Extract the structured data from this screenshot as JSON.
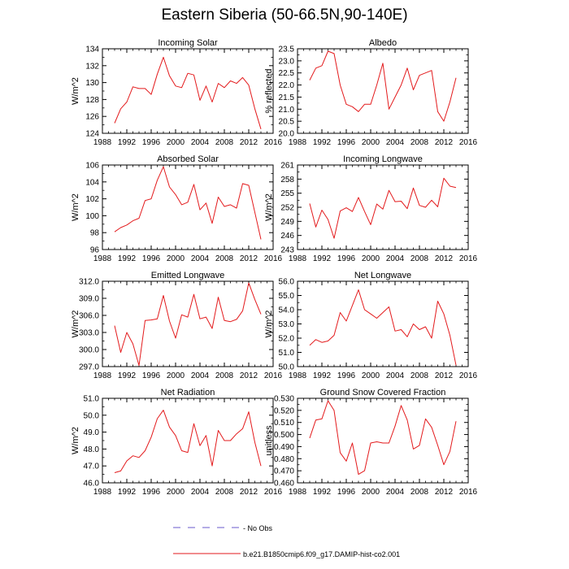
{
  "title": "Eastern Siberia (50-66.5N,90-140E)",
  "legend": {
    "entries": [
      {
        "label": "- No Obs",
        "color": "#6a5acd",
        "style": "dashed"
      },
      {
        "label": "b.e21.B1850cmip6.f09_g17.DAMIP-hist-co2.001",
        "color": "#e31a1c",
        "style": "solid"
      }
    ]
  },
  "chart_data": [
    {
      "type": "line",
      "title": "Incoming Solar",
      "ylabel": "W/m^2",
      "xlim": [
        1988,
        2016
      ],
      "ylim": [
        124,
        134
      ],
      "xticks": [
        "1988",
        "1992",
        "1996",
        "2000",
        "2004",
        "2008",
        "2012",
        "2016"
      ],
      "yticks": [
        "124",
        "126",
        "128",
        "130",
        "132",
        "134"
      ],
      "x": [
        1990,
        1991,
        1992,
        1993,
        1994,
        1995,
        1996,
        1997,
        1998,
        1999,
        2000,
        2001,
        2002,
        2003,
        2004,
        2005,
        2006,
        2007,
        2008,
        2009,
        2010,
        2011,
        2012,
        2013,
        2014
      ],
      "series": [
        {
          "values": [
            125.2,
            126.9,
            127.7,
            129.5,
            129.3,
            129.3,
            128.6,
            131.0,
            133.0,
            130.8,
            129.6,
            129.4,
            131.1,
            130.9,
            127.9,
            129.6,
            127.7,
            129.9,
            129.4,
            130.2,
            129.9,
            130.6,
            129.7,
            126.9,
            124.5
          ],
          "color": "#e31a1c"
        }
      ]
    },
    {
      "type": "line",
      "title": "Albedo",
      "ylabel": "% reflected",
      "xlim": [
        1988,
        2016
      ],
      "ylim": [
        20.0,
        23.5
      ],
      "xticks": [
        "1988",
        "1992",
        "1996",
        "2000",
        "2004",
        "2008",
        "2012",
        "2016"
      ],
      "yticks": [
        "20.0",
        "20.5",
        "21.0",
        "21.5",
        "22.0",
        "22.5",
        "23.0",
        "23.5"
      ],
      "x": [
        1990,
        1991,
        1992,
        1993,
        1994,
        1995,
        1996,
        1997,
        1998,
        1999,
        2000,
        2001,
        2002,
        2003,
        2004,
        2005,
        2006,
        2007,
        2008,
        2009,
        2010,
        2011,
        2012,
        2013,
        2014
      ],
      "series": [
        {
          "values": [
            22.2,
            22.7,
            22.8,
            23.4,
            23.3,
            22.0,
            21.2,
            21.1,
            20.9,
            21.2,
            21.2,
            22.0,
            22.9,
            21.0,
            21.5,
            22.0,
            22.7,
            21.8,
            22.4,
            22.5,
            22.6,
            20.9,
            20.5,
            21.3,
            22.3
          ],
          "color": "#e31a1c"
        }
      ]
    },
    {
      "type": "line",
      "title": "Absorbed Solar",
      "ylabel": "W/m^2",
      "xlim": [
        1988,
        2016
      ],
      "ylim": [
        96,
        106
      ],
      "xticks": [
        "1988",
        "1992",
        "1996",
        "2000",
        "2004",
        "2008",
        "2012",
        "2016"
      ],
      "yticks": [
        "96",
        "98",
        "100",
        "102",
        "104",
        "106"
      ],
      "x": [
        1990,
        1991,
        1992,
        1993,
        1994,
        1995,
        1996,
        1997,
        1998,
        1999,
        2000,
        2001,
        2002,
        2003,
        2004,
        2005,
        2006,
        2007,
        2008,
        2009,
        2010,
        2011,
        2012,
        2013,
        2014
      ],
      "series": [
        {
          "values": [
            98.1,
            98.6,
            98.9,
            99.4,
            99.7,
            101.8,
            102.0,
            104.2,
            105.8,
            103.4,
            102.5,
            101.3,
            101.6,
            103.7,
            100.7,
            101.5,
            99.1,
            102.2,
            101.1,
            101.3,
            100.9,
            103.8,
            103.6,
            100.4,
            97.2
          ],
          "color": "#e31a1c"
        }
      ]
    },
    {
      "type": "line",
      "title": "Incoming Longwave",
      "ylabel": "W/m^2",
      "xlim": [
        1988,
        2016
      ],
      "ylim": [
        243,
        261
      ],
      "xticks": [
        "1988",
        "1992",
        "1996",
        "2000",
        "2004",
        "2008",
        "2012",
        "2016"
      ],
      "yticks": [
        "243",
        "246",
        "249",
        "252",
        "255",
        "258",
        "261"
      ],
      "x": [
        1990,
        1991,
        1992,
        1993,
        1994,
        1995,
        1996,
        1997,
        1998,
        1999,
        2000,
        2001,
        2002,
        2003,
        2004,
        2005,
        2006,
        2007,
        2008,
        2009,
        2010,
        2011,
        2012,
        2013,
        2014
      ],
      "series": [
        {
          "values": [
            252.8,
            247.8,
            251.4,
            249.4,
            245.4,
            251.2,
            251.9,
            251.1,
            254.1,
            251.1,
            248.3,
            252.7,
            251.6,
            255.6,
            253.2,
            253.3,
            251.7,
            256.1,
            252.4,
            252.0,
            253.5,
            252.1,
            258.2,
            256.5,
            256.2
          ],
          "color": "#e31a1c"
        }
      ]
    },
    {
      "type": "line",
      "title": "Emitted Longwave",
      "ylabel": "W/m^2",
      "xlim": [
        1988,
        2016
      ],
      "ylim": [
        297.0,
        312.0
      ],
      "xticks": [
        "1988",
        "1992",
        "1996",
        "2000",
        "2004",
        "2008",
        "2012",
        "2016"
      ],
      "yticks": [
        "297.0",
        "300.0",
        "303.0",
        "306.0",
        "309.0",
        "312.0"
      ],
      "x": [
        1990,
        1991,
        1992,
        1993,
        1994,
        1995,
        1996,
        1997,
        1998,
        1999,
        2000,
        2001,
        2002,
        2003,
        2004,
        2005,
        2006,
        2007,
        2008,
        2009,
        2010,
        2011,
        2012,
        2013,
        2014
      ],
      "series": [
        {
          "values": [
            304.2,
            299.5,
            303.0,
            301.0,
            297.2,
            305.1,
            305.2,
            305.4,
            309.5,
            305.0,
            302.0,
            306.1,
            305.7,
            309.7,
            305.4,
            305.7,
            303.7,
            309.2,
            305.1,
            304.9,
            305.3,
            306.8,
            311.7,
            308.8,
            306.2
          ],
          "color": "#e31a1c"
        }
      ]
    },
    {
      "type": "line",
      "title": "Net Longwave",
      "ylabel": "W/m^2",
      "xlim": [
        1988,
        2016
      ],
      "ylim": [
        50.0,
        56.0
      ],
      "xticks": [
        "1988",
        "1992",
        "1996",
        "2000",
        "2004",
        "2008",
        "2012",
        "2016"
      ],
      "yticks": [
        "50.0",
        "51.0",
        "52.0",
        "53.0",
        "54.0",
        "55.0",
        "56.0"
      ],
      "x": [
        1990,
        1991,
        1992,
        1993,
        1994,
        1995,
        1996,
        1997,
        1998,
        1999,
        2000,
        2001,
        2002,
        2003,
        2004,
        2005,
        2006,
        2007,
        2008,
        2009,
        2010,
        2011,
        2012,
        2013,
        2014
      ],
      "series": [
        {
          "values": [
            51.5,
            51.9,
            51.7,
            51.8,
            52.2,
            53.8,
            53.2,
            54.3,
            55.4,
            54.0,
            53.7,
            53.4,
            53.8,
            54.2,
            52.5,
            52.6,
            52.1,
            53.0,
            52.6,
            52.8,
            52.0,
            54.6,
            53.7,
            52.2,
            50.1
          ],
          "color": "#e31a1c"
        }
      ]
    },
    {
      "type": "line",
      "title": "Net Radiation",
      "ylabel": "W/m^2",
      "xlim": [
        1988,
        2016
      ],
      "ylim": [
        46.0,
        51.0
      ],
      "xticks": [
        "1988",
        "1992",
        "1996",
        "2000",
        "2004",
        "2008",
        "2012",
        "2016"
      ],
      "yticks": [
        "46.0",
        "47.0",
        "48.0",
        "49.0",
        "50.0",
        "51.0"
      ],
      "x": [
        1990,
        1991,
        1992,
        1993,
        1994,
        1995,
        1996,
        1997,
        1998,
        1999,
        2000,
        2001,
        2002,
        2003,
        2004,
        2005,
        2006,
        2007,
        2008,
        2009,
        2010,
        2011,
        2012,
        2013,
        2014
      ],
      "series": [
        {
          "values": [
            46.6,
            46.7,
            47.3,
            47.6,
            47.5,
            47.9,
            48.7,
            49.8,
            50.3,
            49.3,
            48.8,
            47.9,
            47.8,
            49.5,
            48.2,
            48.8,
            47.0,
            49.1,
            48.5,
            48.5,
            48.9,
            49.2,
            50.2,
            48.4,
            47.0
          ],
          "color": "#e31a1c"
        }
      ]
    },
    {
      "type": "line",
      "title": "Ground Snow Covered Fraction",
      "ylabel": "unitless",
      "xlim": [
        1988,
        2016
      ],
      "ylim": [
        0.46,
        0.53
      ],
      "xticks": [
        "1988",
        "1992",
        "1996",
        "2000",
        "2004",
        "2008",
        "2012",
        "2016"
      ],
      "yticks": [
        "0.460",
        "0.470",
        "0.480",
        "0.490",
        "0.500",
        "0.510",
        "0.520",
        "0.530"
      ],
      "x": [
        1990,
        1991,
        1992,
        1993,
        1994,
        1995,
        1996,
        1997,
        1998,
        1999,
        2000,
        2001,
        2002,
        2003,
        2004,
        2005,
        2006,
        2007,
        2008,
        2009,
        2010,
        2011,
        2012,
        2013,
        2014
      ],
      "series": [
        {
          "values": [
            0.497,
            0.512,
            0.513,
            0.528,
            0.52,
            0.485,
            0.478,
            0.493,
            0.467,
            0.47,
            0.493,
            0.494,
            0.493,
            0.493,
            0.507,
            0.524,
            0.512,
            0.488,
            0.491,
            0.513,
            0.506,
            0.491,
            0.475,
            0.486,
            0.511
          ],
          "color": "#e31a1c"
        }
      ]
    }
  ]
}
